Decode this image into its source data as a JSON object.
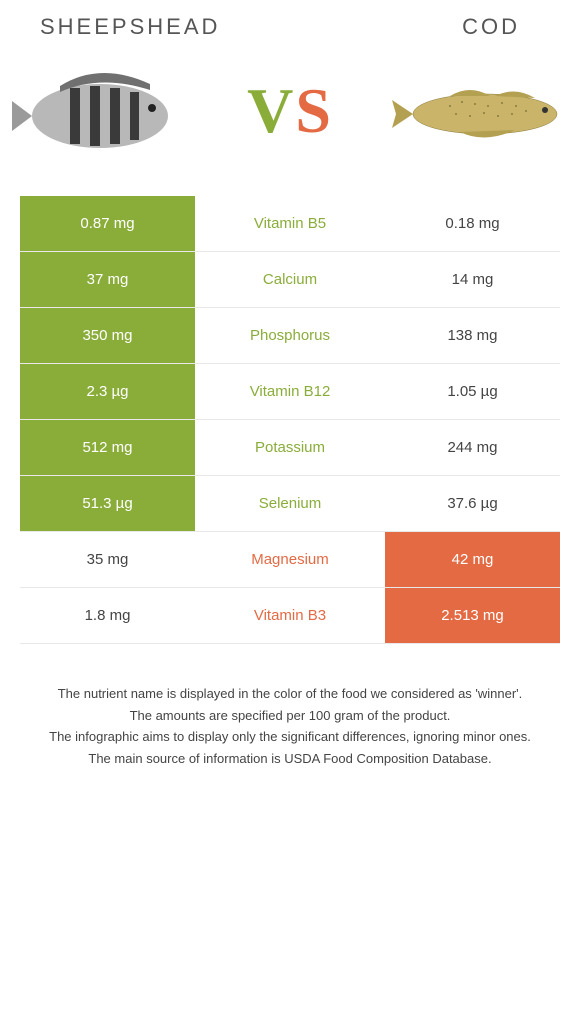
{
  "header": {
    "left_title": "Sheepshead",
    "right_title": "Cod"
  },
  "vs": {
    "v": "V",
    "s": "S"
  },
  "colors": {
    "green": "#8aad3a",
    "orange": "#e46a44"
  },
  "rows": [
    {
      "left": "0.87 mg",
      "mid": "Vitamin B5",
      "right": "0.18 mg",
      "winner": "left"
    },
    {
      "left": "37 mg",
      "mid": "Calcium",
      "right": "14 mg",
      "winner": "left"
    },
    {
      "left": "350 mg",
      "mid": "Phosphorus",
      "right": "138 mg",
      "winner": "left"
    },
    {
      "left": "2.3 µg",
      "mid": "Vitamin B12",
      "right": "1.05 µg",
      "winner": "left"
    },
    {
      "left": "512 mg",
      "mid": "Potassium",
      "right": "244 mg",
      "winner": "left"
    },
    {
      "left": "51.3 µg",
      "mid": "Selenium",
      "right": "37.6 µg",
      "winner": "left"
    },
    {
      "left": "35 mg",
      "mid": "Magnesium",
      "right": "42 mg",
      "winner": "right"
    },
    {
      "left": "1.8 mg",
      "mid": "Vitamin B3",
      "right": "2.513 mg",
      "winner": "right"
    }
  ],
  "footer": {
    "line1": "The nutrient name is displayed in the color of the food we considered as 'winner'.",
    "line2": "The amounts are specified per 100 gram of the product.",
    "line3": "The infographic aims to display only the significant differences, ignoring minor ones.",
    "line4": "The main source of information is USDA Food Composition Database."
  }
}
